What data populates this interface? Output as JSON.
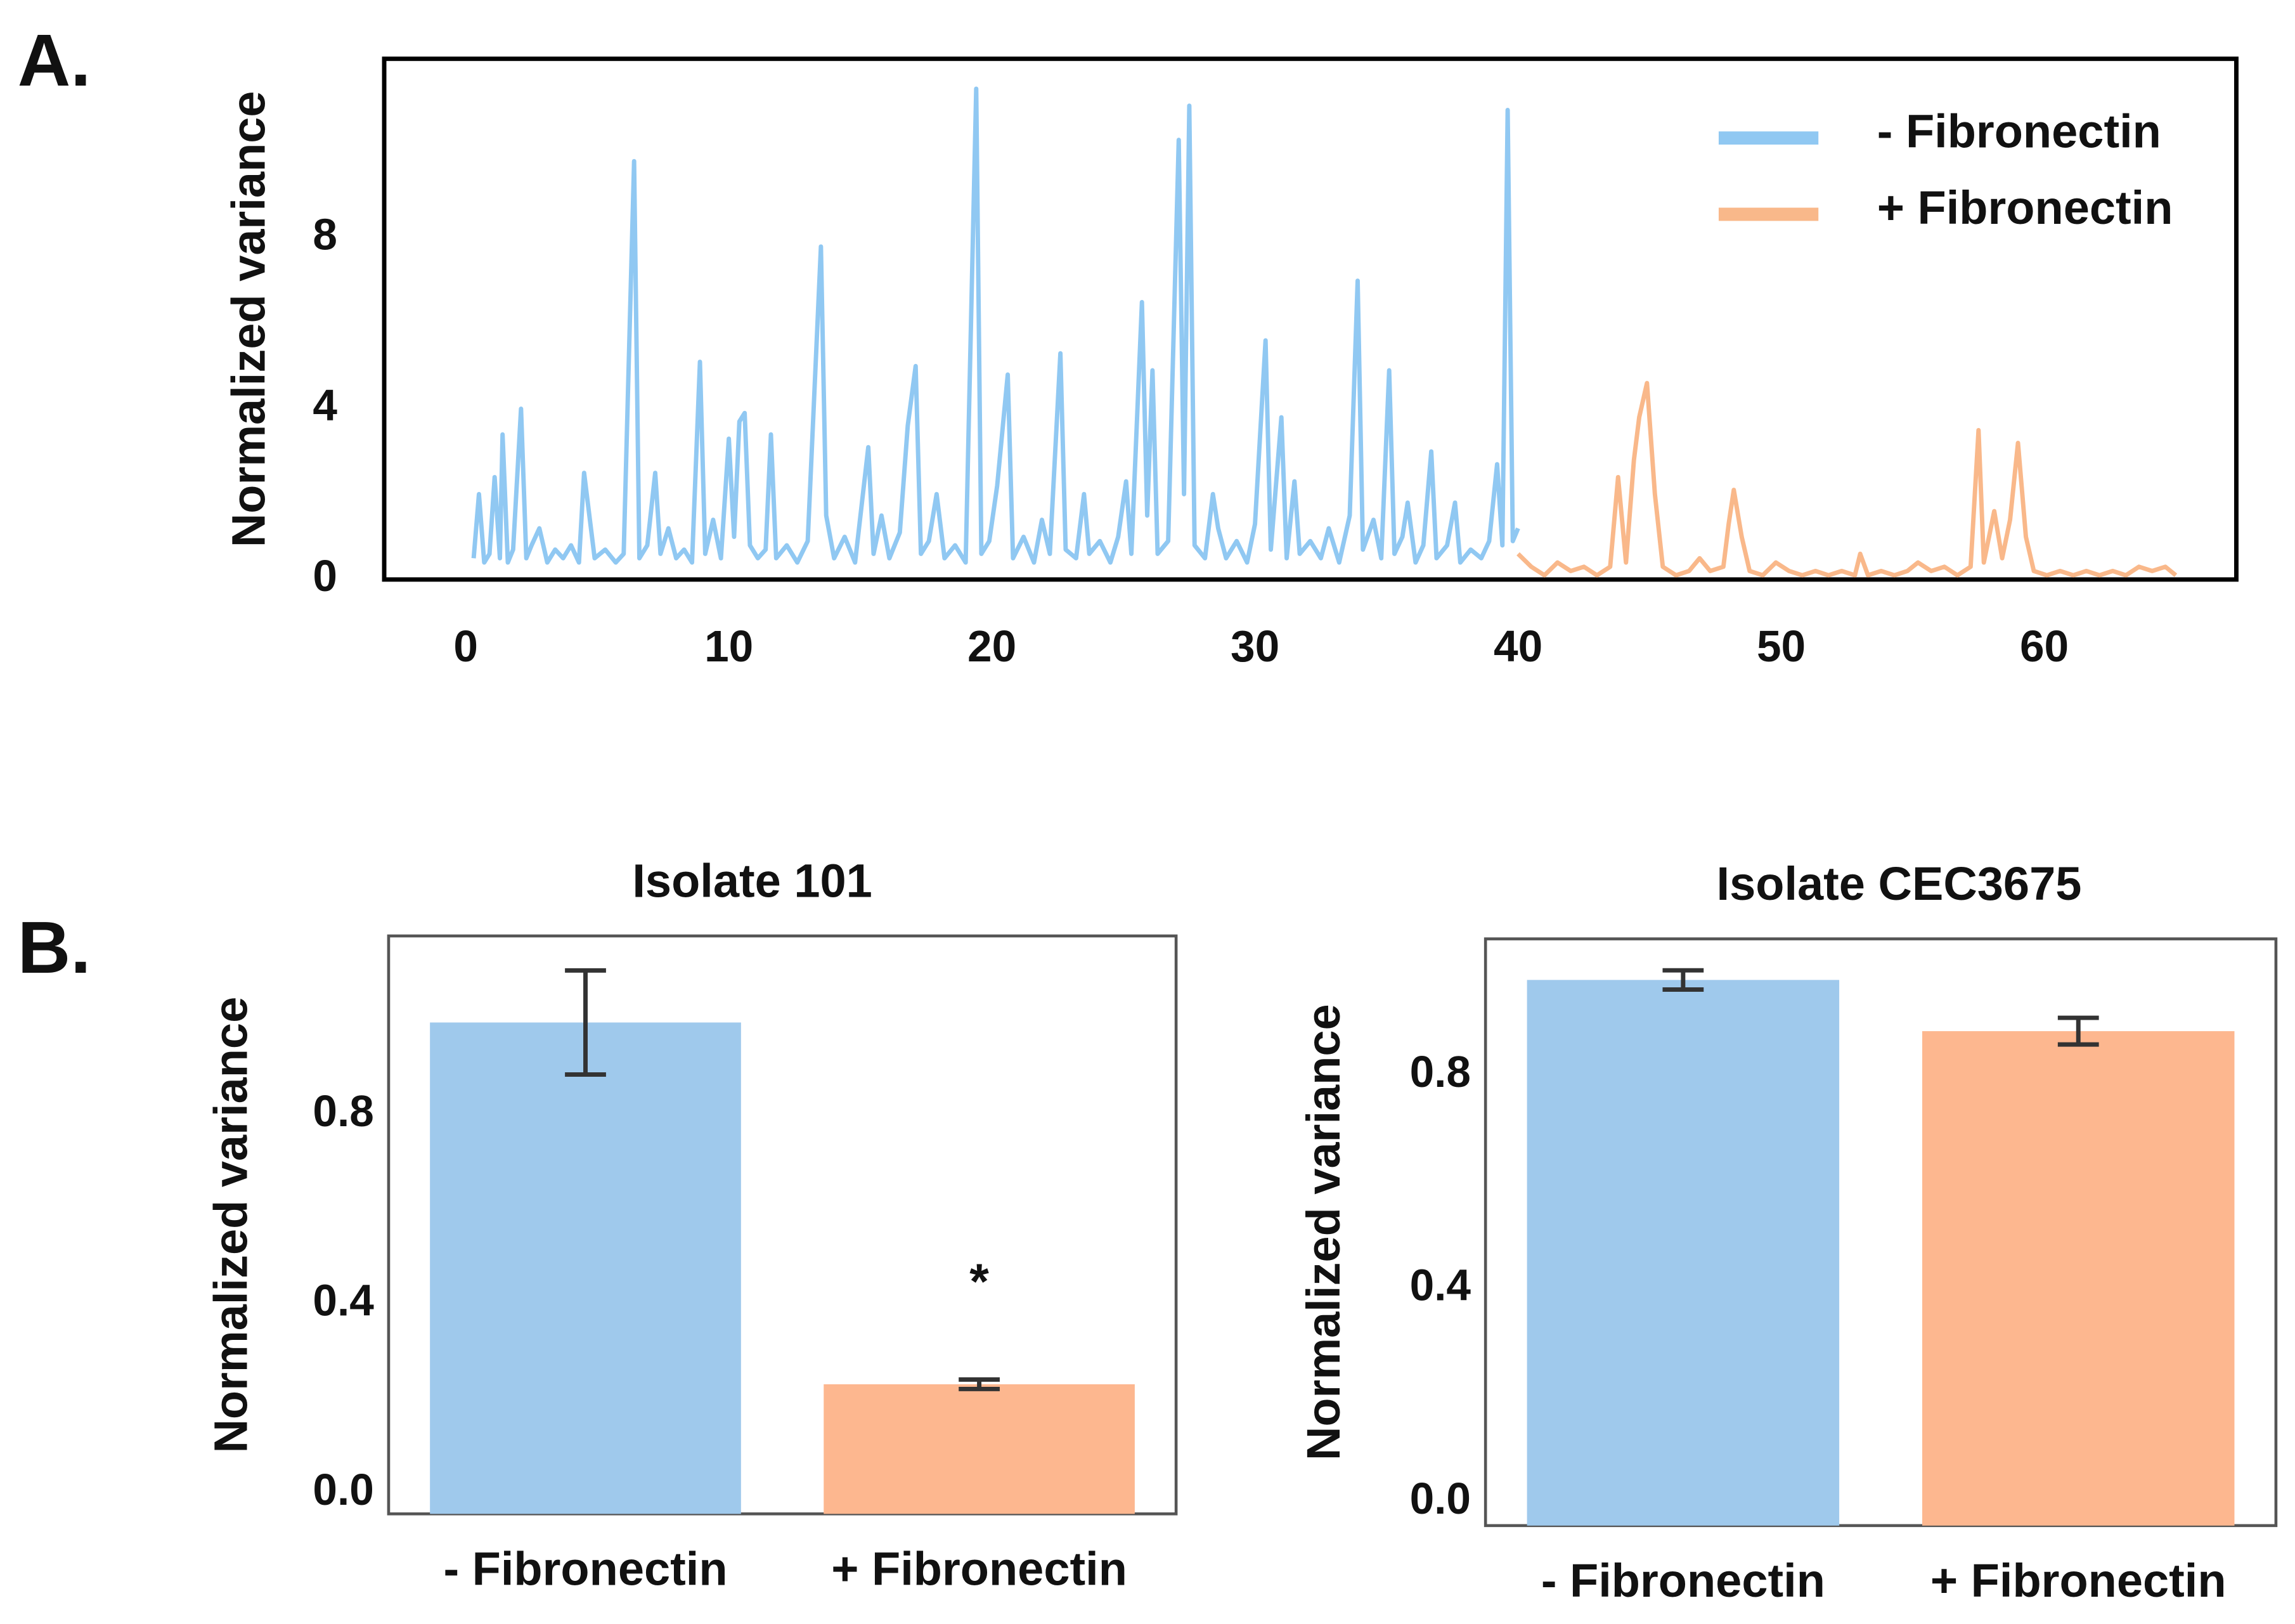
{
  "chart_data": [
    {
      "type": "line",
      "panel_label": "A.",
      "ylabel": "Normalized variance",
      "legend": "upper right",
      "xlim": [
        -3.1,
        67.3
      ],
      "ylim": [
        0,
        12.2
      ],
      "xticks": [
        0,
        10,
        20,
        30,
        40,
        50,
        60
      ],
      "yticks": [
        0,
        4,
        8
      ],
      "series": [
        {
          "name": "- Fibronectin",
          "color": "#90c8f2",
          "x": [
            0.3,
            0.5,
            0.7,
            0.9,
            1.1,
            1.3,
            1.4,
            1.6,
            1.8,
            2.1,
            2.3,
            2.5,
            2.8,
            3.1,
            3.4,
            3.7,
            4.0,
            4.3,
            4.5,
            4.7,
            4.9,
            5.3,
            5.7,
            6.0,
            6.4,
            6.6,
            6.9,
            7.2,
            7.4,
            7.7,
            8.0,
            8.3,
            8.6,
            8.9,
            9.1,
            9.4,
            9.7,
            10.0,
            10.2,
            10.4,
            10.6,
            10.8,
            11.1,
            11.4,
            11.6,
            11.8,
            12.2,
            12.6,
            13.0,
            13.5,
            13.7,
            14.0,
            14.4,
            14.8,
            15.3,
            15.5,
            15.8,
            16.1,
            16.5,
            16.8,
            17.1,
            17.3,
            17.6,
            17.9,
            18.2,
            18.6,
            19.0,
            19.4,
            19.6,
            19.9,
            20.2,
            20.6,
            20.8,
            21.2,
            21.6,
            21.9,
            22.2,
            22.6,
            22.8,
            23.2,
            23.5,
            23.7,
            24.1,
            24.5,
            24.8,
            25.1,
            25.3,
            25.7,
            25.9,
            26.1,
            26.3,
            26.7,
            27.1,
            27.3,
            27.5,
            27.7,
            28.1,
            28.4,
            28.6,
            28.9,
            29.3,
            29.7,
            30.0,
            30.4,
            30.6,
            31.0,
            31.2,
            31.5,
            31.7,
            32.1,
            32.5,
            32.8,
            33.2,
            33.6,
            33.9,
            34.1,
            34.5,
            34.8,
            35.1,
            35.3,
            35.6,
            35.8,
            36.1,
            36.4,
            36.7,
            36.9,
            37.3,
            37.6,
            37.8,
            38.2,
            38.6,
            38.9,
            39.2,
            39.4,
            39.6,
            39.8,
            40.0
          ],
          "values": [
            0.5,
            2.0,
            0.4,
            0.6,
            2.4,
            0.5,
            3.4,
            0.4,
            0.7,
            4.0,
            0.5,
            0.8,
            1.2,
            0.4,
            0.7,
            0.5,
            0.8,
            0.4,
            2.5,
            1.5,
            0.5,
            0.7,
            0.4,
            0.6,
            9.8,
            0.5,
            0.8,
            2.5,
            0.6,
            1.2,
            0.5,
            0.7,
            0.4,
            5.1,
            0.6,
            1.4,
            0.5,
            3.3,
            1.0,
            3.7,
            3.9,
            0.8,
            0.5,
            0.7,
            3.4,
            0.5,
            0.8,
            0.4,
            0.9,
            7.8,
            1.5,
            0.5,
            1.0,
            0.4,
            3.1,
            0.6,
            1.5,
            0.5,
            1.1,
            3.6,
            5.0,
            0.6,
            0.9,
            2.0,
            0.5,
            0.8,
            0.4,
            11.5,
            0.6,
            0.9,
            2.2,
            4.8,
            0.5,
            1.0,
            0.4,
            1.4,
            0.6,
            5.3,
            0.7,
            0.5,
            2.0,
            0.6,
            0.9,
            0.4,
            1.0,
            2.3,
            0.6,
            6.5,
            1.5,
            4.9,
            0.6,
            0.9,
            10.3,
            2.0,
            11.1,
            0.8,
            0.5,
            2.0,
            1.2,
            0.5,
            0.9,
            0.4,
            1.3,
            5.6,
            0.7,
            3.8,
            0.5,
            2.3,
            0.6,
            0.9,
            0.5,
            1.2,
            0.4,
            1.5,
            7.0,
            0.7,
            1.4,
            0.5,
            4.9,
            0.6,
            1.0,
            1.8,
            0.4,
            0.8,
            3.0,
            0.5,
            0.8,
            1.8,
            0.4,
            0.7,
            0.5,
            0.9,
            2.7,
            0.8,
            11.0,
            0.9,
            1.2
          ]
        },
        {
          "name": "+ Fibronectin",
          "color": "#f9b88a",
          "x": [
            40.0,
            40.5,
            41.0,
            41.5,
            42.0,
            42.5,
            43.0,
            43.5,
            43.8,
            44.1,
            44.4,
            44.6,
            44.9,
            45.2,
            45.5,
            46.0,
            46.5,
            46.9,
            47.3,
            47.8,
            48.0,
            48.2,
            48.5,
            48.8,
            49.3,
            49.8,
            50.3,
            50.8,
            51.3,
            51.8,
            52.3,
            52.8,
            53.0,
            53.3,
            53.8,
            54.3,
            54.8,
            55.2,
            55.7,
            56.2,
            56.7,
            57.2,
            57.5,
            57.7,
            58.1,
            58.4,
            58.7,
            59.0,
            59.3,
            59.6,
            60.1,
            60.6,
            61.1,
            61.6,
            62.1,
            62.6,
            63.1,
            63.6,
            64.1,
            64.6,
            65.0
          ],
          "values": [
            0.6,
            0.3,
            0.1,
            0.4,
            0.2,
            0.3,
            0.1,
            0.3,
            2.4,
            0.4,
            2.8,
            3.8,
            4.6,
            2.0,
            0.3,
            0.1,
            0.2,
            0.5,
            0.2,
            0.3,
            1.3,
            2.1,
            1.0,
            0.2,
            0.1,
            0.4,
            0.2,
            0.1,
            0.2,
            0.1,
            0.2,
            0.1,
            0.6,
            0.1,
            0.2,
            0.1,
            0.2,
            0.4,
            0.2,
            0.3,
            0.1,
            0.3,
            3.5,
            0.4,
            1.6,
            0.5,
            1.4,
            3.2,
            1.0,
            0.2,
            0.1,
            0.2,
            0.1,
            0.2,
            0.1,
            0.2,
            0.1,
            0.3,
            0.2,
            0.3,
            0.1
          ]
        }
      ]
    },
    {
      "type": "bar",
      "panel_label": "B.",
      "title": "Isolate 101",
      "ylabel": "Normalized variance",
      "categories": [
        "- Fibronectin",
        "+ Fibronectin"
      ],
      "values": [
        0.995,
        0.23
      ],
      "errors": [
        0.11,
        0.01
      ],
      "colors": [
        "#9fc9ec",
        "#fdb78f"
      ],
      "annotation": "*",
      "ylim": [
        -0.044,
        1.178
      ],
      "yticks": [
        {
          "value": 0,
          "label": "0.0"
        },
        0.4,
        0.8
      ]
    },
    {
      "type": "bar",
      "title": "Isolate CEC3675",
      "ylabel": "Normalized variance",
      "categories": [
        "- Fibronectin",
        "+ Fibronectin"
      ],
      "values": [
        0.979,
        0.883
      ],
      "errors": [
        0.018,
        0.025
      ],
      "colors": [
        "#9fc9ec",
        "#fdb78f"
      ],
      "ylim": [
        -0.044,
        1.056
      ],
      "yticks": [
        {
          "value": 0,
          "label": "0.0"
        },
        0.4,
        0.8
      ]
    }
  ]
}
